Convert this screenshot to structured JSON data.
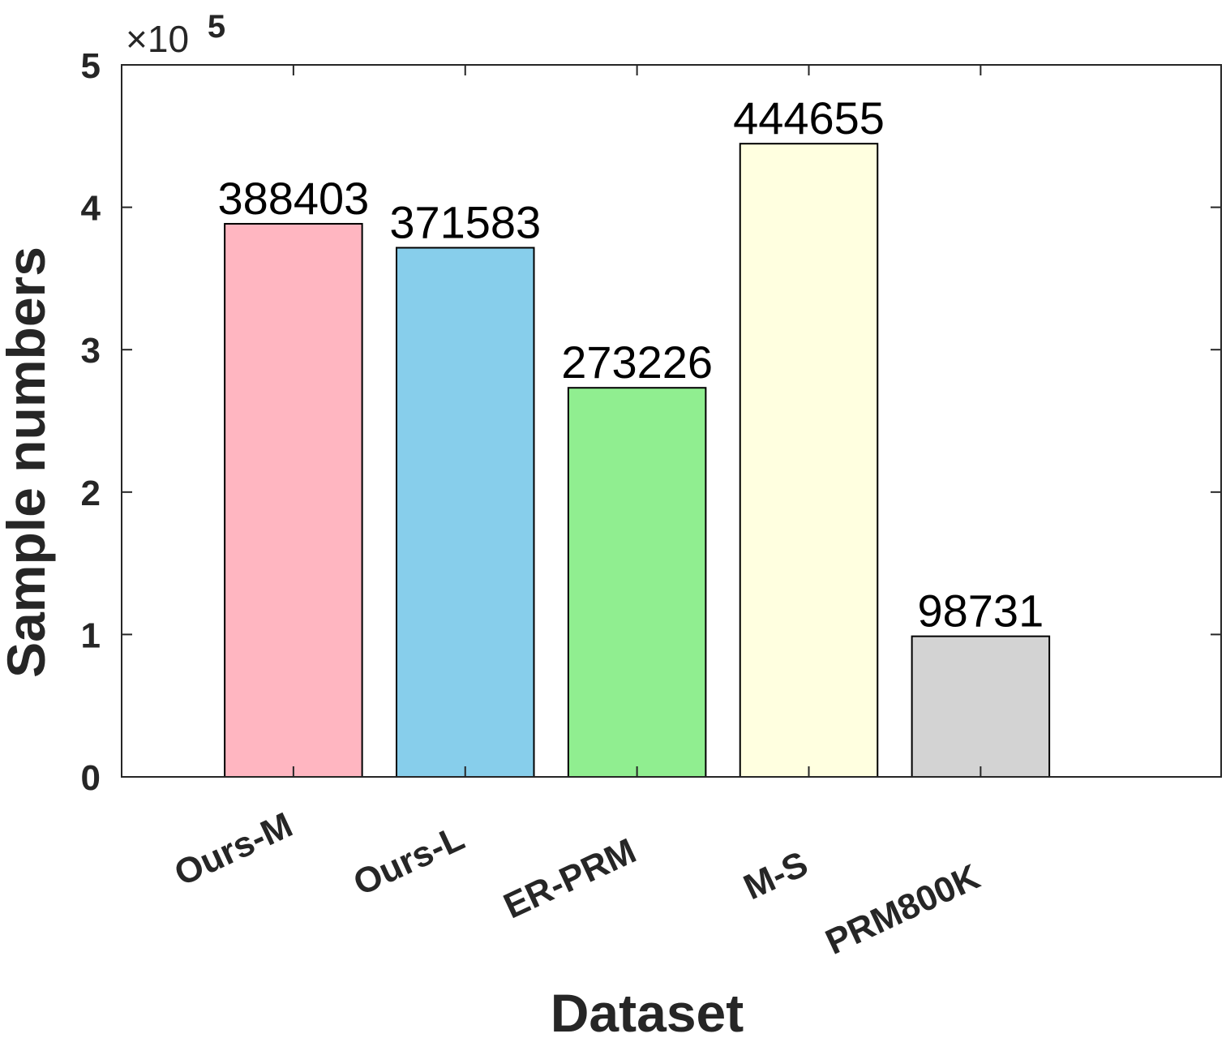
{
  "chart_data": {
    "type": "bar",
    "categories": [
      "Ours-M",
      "Ours-L",
      "ER-PRM",
      "M-S",
      "PRM800K"
    ],
    "values": [
      388403,
      371583,
      273226,
      444655,
      98731
    ],
    "data_labels": [
      "388403",
      "371583",
      "273226",
      "444655",
      "98731"
    ],
    "colors": [
      "#FFB6C1",
      "#87CEEB",
      "#90EE90",
      "#FFFFE0",
      "#D3D3D3"
    ],
    "title": "",
    "xlabel": "Dataset",
    "ylabel": "Sample numbers",
    "ylim": [
      0,
      500000
    ],
    "yticks": [
      0,
      100000,
      200000,
      300000,
      400000,
      500000
    ],
    "ytick_labels": [
      "0",
      "1",
      "2",
      "3",
      "4",
      "5"
    ],
    "exponent_prefix": "×10",
    "exponent_power": "5",
    "xlim": [
      0,
      6.4
    ],
    "grid": false,
    "legend": "none",
    "xtick_rotation": "angled"
  }
}
